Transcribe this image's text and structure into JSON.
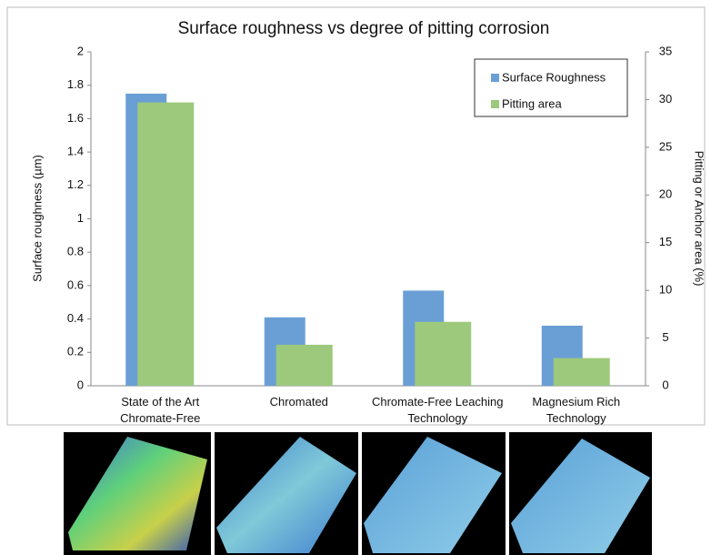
{
  "chart_data": {
    "type": "bar",
    "title": "Surface roughness vs  degree of pitting corrosion",
    "categories": [
      "State of the Art\nChromate-Free",
      "Chromated",
      "Chromate-Free Leaching\nTechnology",
      "Magnesium Rich\nTechnology"
    ],
    "series": [
      {
        "name": "Surface Roughness",
        "color": "#6a9fd6",
        "values": [
          1.75,
          0.41,
          0.57,
          0.36
        ]
      },
      {
        "name": "Pitting area",
        "color": "#9cc97b",
        "axis": "y2",
        "values": [
          29.7,
          4.3,
          6.7,
          2.9
        ]
      }
    ],
    "y_label": "Surface roughness (µm)",
    "y2_label": "Pitting or Anchor area (%)",
    "ylim": [
      0,
      2
    ],
    "yticks": [
      0,
      0.2,
      0.4,
      0.6,
      0.8,
      1,
      1.2,
      1.4,
      1.6,
      1.8,
      2
    ],
    "y2lim": [
      0,
      35
    ],
    "y2ticks": [
      0,
      5,
      10,
      15,
      20,
      25,
      30,
      35
    ],
    "legend": "top-right"
  }
}
